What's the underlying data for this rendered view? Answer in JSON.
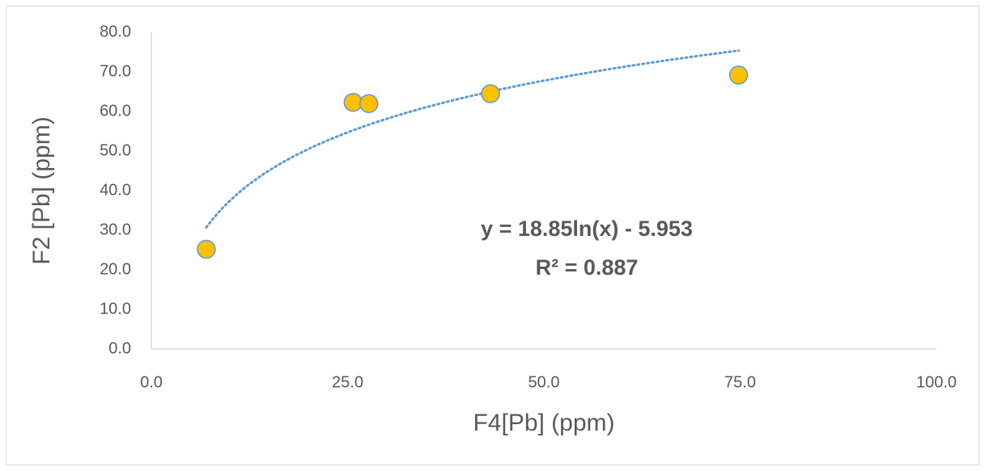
{
  "chart_data": {
    "type": "scatter",
    "x_label": "F4[Pb] (ppm)",
    "y_label": "F2 [Pb] (ppm)",
    "series": [
      {
        "x": [
          7.0,
          25.7,
          27.7,
          43.2,
          74.8
        ],
        "values": [
          25.2,
          62.3,
          62.0,
          64.5,
          69.2
        ],
        "color": "#FFC000",
        "edge_color": "#5B9BD5"
      }
    ],
    "trendline": {
      "kind": "log",
      "a": 18.85,
      "b": -5.953,
      "color": "#5B9BD5",
      "equation": "y = 18.85ln(x) - 5.953",
      "r2": "R² = 0.887"
    },
    "xlim": [
      0,
      100
    ],
    "xticks": [
      {
        "value": 0,
        "label": "0.0"
      },
      {
        "value": 25,
        "label": "25.0"
      },
      {
        "value": 50,
        "label": "50.0"
      },
      {
        "value": 75,
        "label": "75.0"
      },
      {
        "value": 100,
        "label": "100.0"
      }
    ],
    "ylim": [
      0,
      80
    ],
    "yticks": [
      {
        "value": 0,
        "label": "0.0"
      },
      {
        "value": 10,
        "label": "10.0"
      },
      {
        "value": 20,
        "label": "20.0"
      },
      {
        "value": 30,
        "label": "30.0"
      },
      {
        "value": 40,
        "label": "40.0"
      },
      {
        "value": 50,
        "label": "50.0"
      },
      {
        "value": 60,
        "label": "60.0"
      },
      {
        "value": 70,
        "label": "70.0"
      },
      {
        "value": 80,
        "label": "80.0"
      }
    ],
    "grid": false
  }
}
